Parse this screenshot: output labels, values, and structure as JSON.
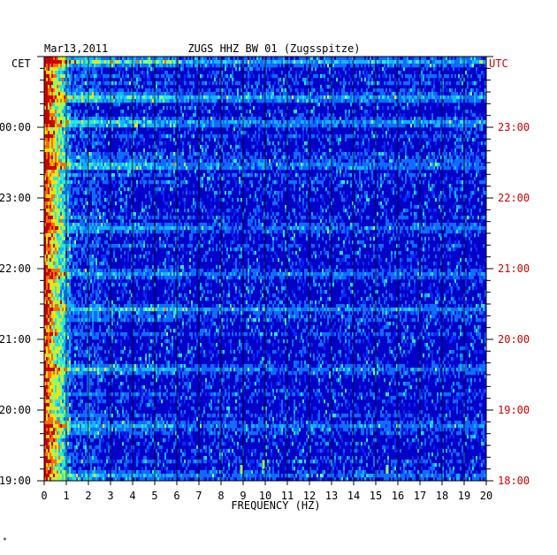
{
  "chart_data": {
    "type": "heatmap",
    "header": {
      "date": "Mar13,2011",
      "title": "ZUGS HHZ BW 01 (Zugsspitze)"
    },
    "left_axis_label": "CET",
    "right_axis_label": "UTC",
    "xlabel": "FREQUENCY (HZ)",
    "x_ticks": [
      0,
      1,
      2,
      3,
      4,
      5,
      6,
      7,
      8,
      9,
      10,
      11,
      12,
      13,
      14,
      15,
      16,
      17,
      18,
      19,
      20
    ],
    "xlim": [
      0,
      20
    ],
    "left_time_ticks": [
      "00:00",
      "23:00",
      "22:00",
      "21:00",
      "20:00",
      "19:00"
    ],
    "right_time_ticks": [
      "23:00",
      "22:00",
      "21:00",
      "20:00",
      "19:00",
      "18:00"
    ],
    "time_span_hours": [
      18,
      24
    ],
    "grid": true,
    "colormap": [
      "#00007a",
      "#0000c8",
      "#0a2aff",
      "#0f6cff",
      "#12b4ff",
      "#2ee6d8",
      "#8cff6a",
      "#ffe000",
      "#ff6a00",
      "#c80000"
    ],
    "row_events": [
      {
        "offset_hours": 0.05,
        "strength": 0.7
      },
      {
        "offset_hours": 0.55,
        "strength": 0.6
      },
      {
        "offset_hours": 0.9,
        "strength": 0.5
      },
      {
        "offset_hours": 1.52,
        "strength": 0.55
      },
      {
        "offset_hours": 2.4,
        "strength": 0.5
      },
      {
        "offset_hours": 3.05,
        "strength": 0.5
      },
      {
        "offset_hours": 3.55,
        "strength": 0.45
      },
      {
        "offset_hours": 4.4,
        "strength": 0.55
      },
      {
        "offset_hours": 5.2,
        "strength": 0.5
      },
      {
        "offset_hours": 5.88,
        "strength": 0.45
      }
    ],
    "spot_events": [
      {
        "freq_hz": 8.9,
        "offset_hours": 0.15
      },
      {
        "freq_hz": 9.9,
        "offset_hours": 0.22
      },
      {
        "freq_hz": 15.5,
        "offset_hours": 0.15
      }
    ]
  },
  "footer_mark": "*"
}
